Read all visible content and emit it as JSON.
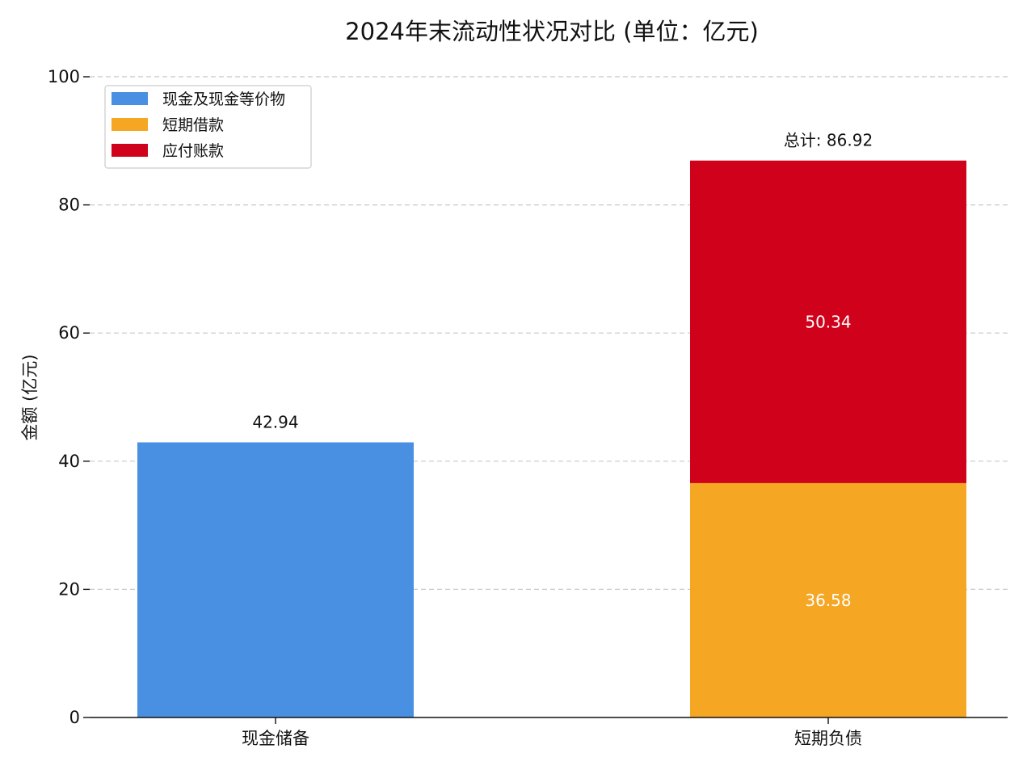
{
  "chart_data": {
    "type": "bar",
    "stacked": true,
    "title": "2024年末流动性状况对比 (单位：亿元)",
    "xlabel": "",
    "ylabel": "金额 (亿元)",
    "ylim": [
      0,
      100
    ],
    "yticks": [
      0,
      20,
      40,
      60,
      80,
      100
    ],
    "grid": true,
    "legend_position": "top-left",
    "categories": [
      "现金储备",
      "短期负债"
    ],
    "series": [
      {
        "name": "现金及现金等价物",
        "color": "#4A90E2",
        "values": [
          42.94,
          0
        ],
        "label_style": "above"
      },
      {
        "name": "短期借款",
        "color": "#F5A623",
        "values": [
          0,
          36.58
        ],
        "label_style": "inside"
      },
      {
        "name": "应付账款",
        "color": "#D0021B",
        "values": [
          0,
          50.34
        ],
        "label_style": "inside"
      }
    ],
    "annotations": [
      {
        "category": "现金储备",
        "text": "42.94",
        "value": 42.94
      },
      {
        "category": "短期负债",
        "text": "总计: 86.92",
        "value": 86.92
      }
    ]
  }
}
